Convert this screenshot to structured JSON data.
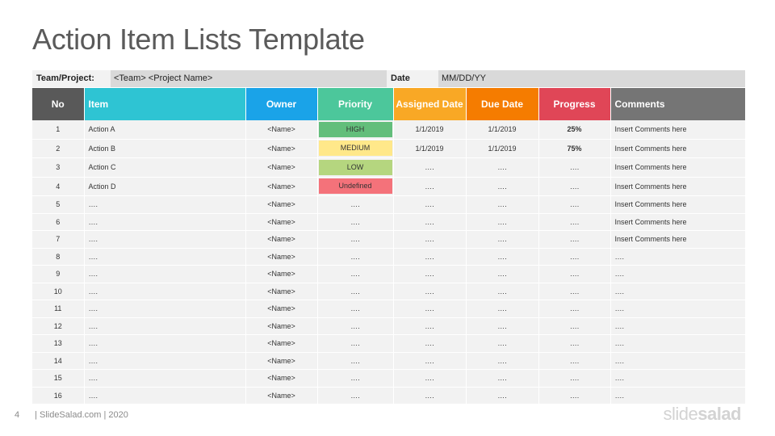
{
  "title": "Action Item Lists Template",
  "info": {
    "team_label": "Team/Project:",
    "team_value": "<Team> <Project Name>",
    "date_label": "Date",
    "date_value": "MM/DD/YY"
  },
  "columns": [
    {
      "key": "no",
      "label": "No",
      "color": "#595959",
      "align": "center",
      "width": 64
    },
    {
      "key": "item",
      "label": "Item",
      "color": "#2ec4d3",
      "align": "left",
      "width": 200
    },
    {
      "key": "owner",
      "label": "Owner",
      "color": "#1aa3e8",
      "align": "center",
      "width": 89
    },
    {
      "key": "priority",
      "label": "Priority",
      "color": "#4cc79b",
      "align": "center",
      "width": 94
    },
    {
      "key": "assigned",
      "label": "Assigned Date",
      "color": "#f9a825",
      "align": "center",
      "width": 90
    },
    {
      "key": "due",
      "label": "Due Date",
      "color": "#f57c00",
      "align": "center",
      "width": 90
    },
    {
      "key": "progress",
      "label": "Progress",
      "color": "#e04657",
      "align": "center",
      "width": 89
    },
    {
      "key": "comments",
      "label": "Comments",
      "color": "#757575",
      "align": "left",
      "width": 167
    }
  ],
  "priority_colors": {
    "HIGH": "#63be7b",
    "MEDIUM": "#ffe88a",
    "LOW": "#b5d67f",
    "Undefined": "#f4727a"
  },
  "rows": [
    {
      "no": "1",
      "item": "Action A",
      "owner": "<Name>",
      "priority": "HIGH",
      "assigned": "1/1/2019",
      "due": "1/1/2019",
      "progress": "25%",
      "comments": "Insert Comments  here"
    },
    {
      "no": "2",
      "item": "Action B",
      "owner": "<Name>",
      "priority": "MEDIUM",
      "assigned": "1/1/2019",
      "due": "1/1/2019",
      "progress": "75%",
      "comments": "Insert Comments  here"
    },
    {
      "no": "3",
      "item": " Action  C",
      "owner": "<Name>",
      "priority": "LOW",
      "assigned": "….",
      "due": "….",
      "progress": "….",
      "comments": "Insert Comments  here"
    },
    {
      "no": "4",
      "item": " Action  D",
      "owner": "<Name>",
      "priority": "Undefined",
      "assigned": "….",
      "due": "….",
      "progress": "….",
      "comments": "Insert Comments  here"
    },
    {
      "no": "5",
      "item": "….",
      "owner": "<Name>",
      "priority": "….",
      "assigned": "….",
      "due": "….",
      "progress": "….",
      "comments": "Insert Comments  here"
    },
    {
      "no": "6",
      "item": "….",
      "owner": "<Name>",
      "priority": "….",
      "assigned": "….",
      "due": "….",
      "progress": "….",
      "comments": "Insert Comments  here"
    },
    {
      "no": "7",
      "item": "….",
      "owner": "<Name>",
      "priority": "….",
      "assigned": "….",
      "due": "….",
      "progress": "….",
      "comments": "Insert Comments  here"
    },
    {
      "no": "8",
      "item": "….",
      "owner": "<Name>",
      "priority": "….",
      "assigned": "….",
      "due": "….",
      "progress": "….",
      "comments": "…."
    },
    {
      "no": "9",
      "item": "….",
      "owner": "<Name>",
      "priority": "….",
      "assigned": "….",
      "due": "….",
      "progress": "….",
      "comments": "…."
    },
    {
      "no": "10",
      "item": "….",
      "owner": "<Name>",
      "priority": "….",
      "assigned": "….",
      "due": "….",
      "progress": "….",
      "comments": "…."
    },
    {
      "no": "11",
      "item": "….",
      "owner": "<Name>",
      "priority": "….",
      "assigned": "….",
      "due": "….",
      "progress": "….",
      "comments": "…."
    },
    {
      "no": "12",
      "item": "….",
      "owner": "<Name>",
      "priority": "….",
      "assigned": "….",
      "due": "….",
      "progress": "….",
      "comments": "…."
    },
    {
      "no": "13",
      "item": "….",
      "owner": "<Name>",
      "priority": "….",
      "assigned": "….",
      "due": "….",
      "progress": "….",
      "comments": "…."
    },
    {
      "no": "14",
      "item": "….",
      "owner": "<Name>",
      "priority": "….",
      "assigned": "….",
      "due": "….",
      "progress": "….",
      "comments": "…."
    },
    {
      "no": "15",
      "item": "….",
      "owner": "<Name>",
      "priority": "….",
      "assigned": "….",
      "due": "….",
      "progress": "….",
      "comments": "…."
    },
    {
      "no": "16",
      "item": "….",
      "owner": "<Name>",
      "priority": "….",
      "assigned": "….",
      "due": "….",
      "progress": "….",
      "comments": "…."
    }
  ],
  "footer": {
    "page_number": "4",
    "source": "| SlideSalad.com | 2020"
  },
  "logo": {
    "part1": "slide",
    "part2": "salad"
  }
}
